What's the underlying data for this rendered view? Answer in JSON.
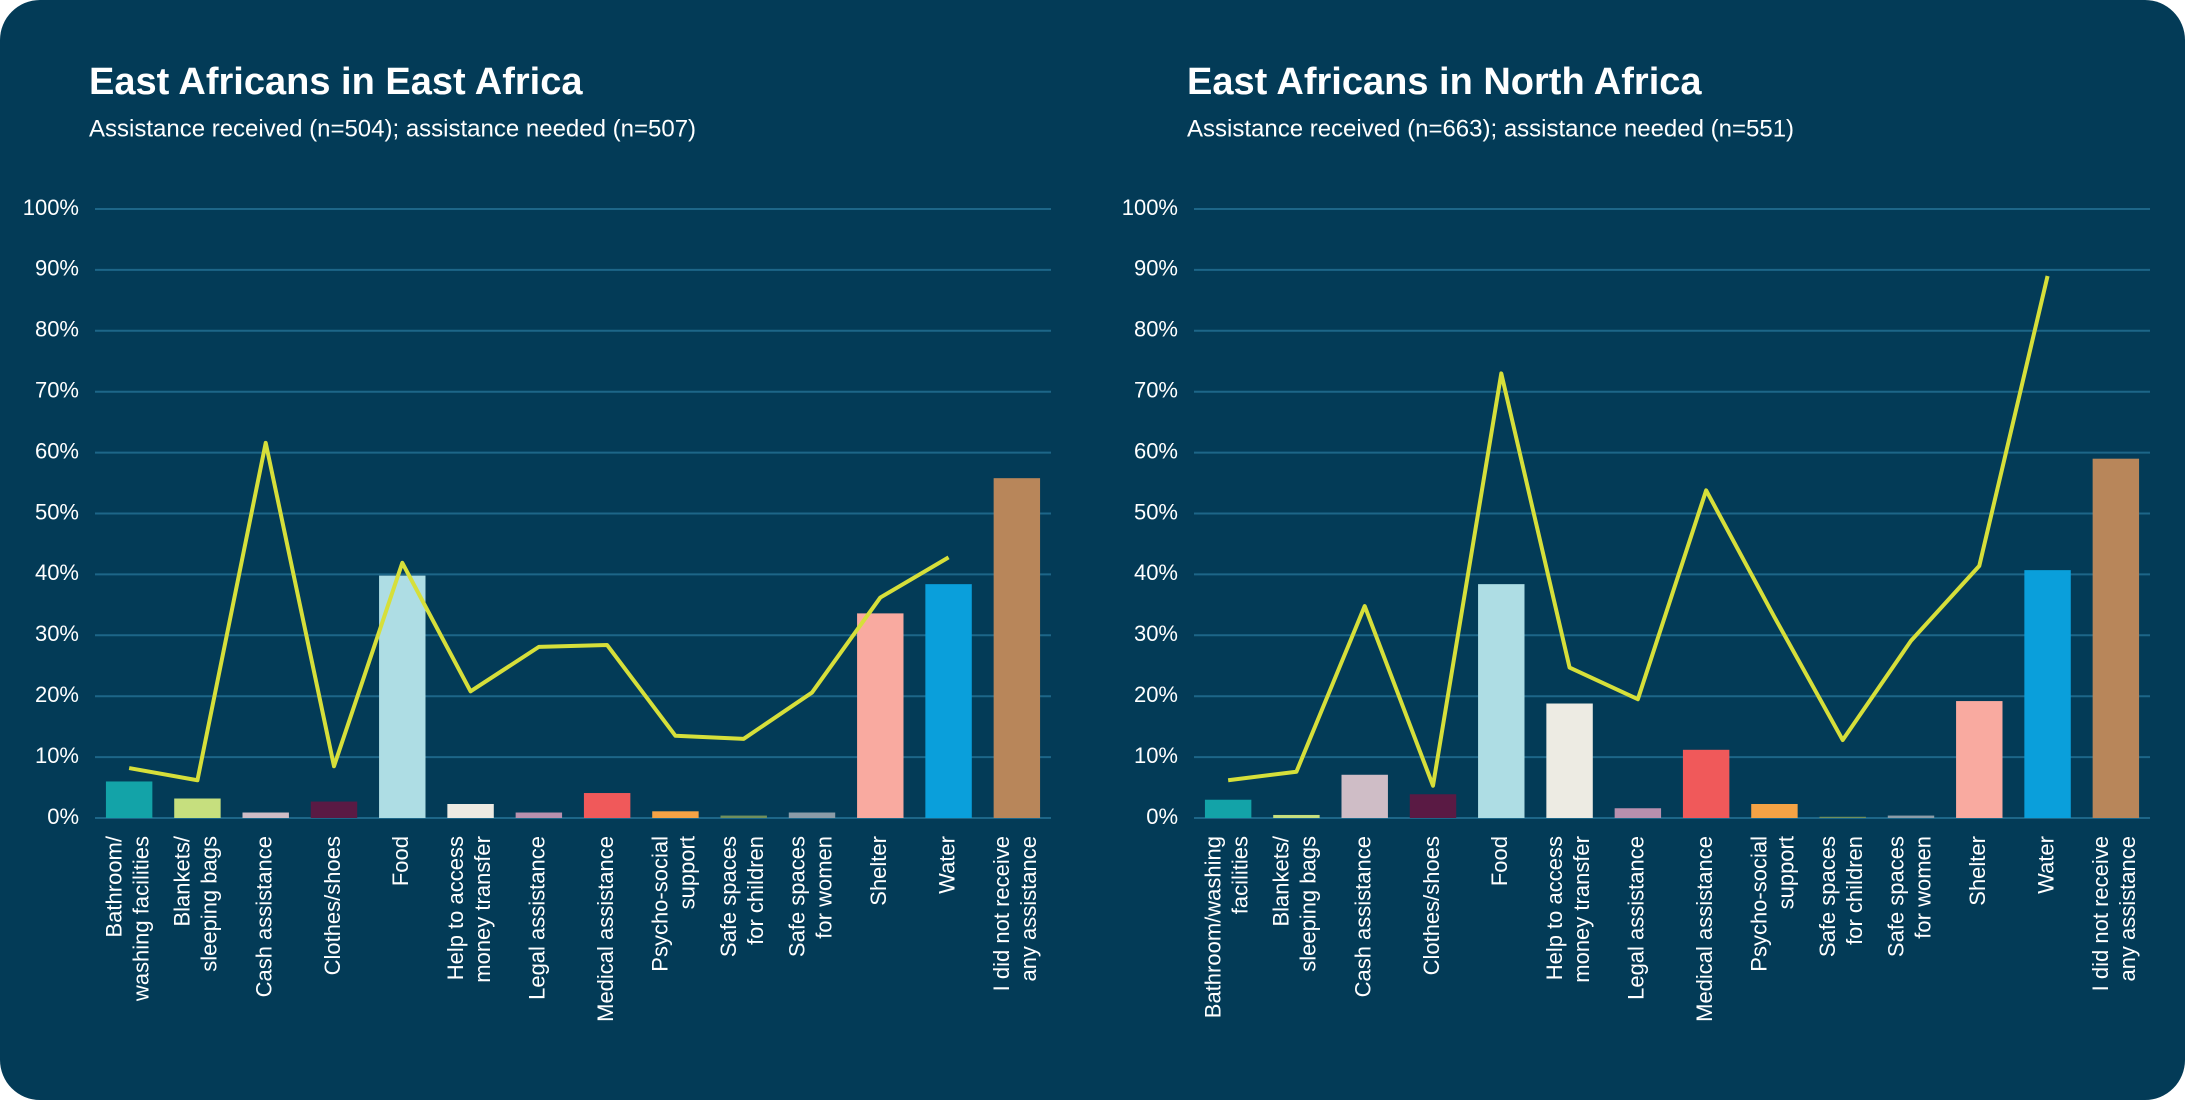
{
  "chart_data": [
    {
      "type": "bar",
      "title": "East Africans in East Africa",
      "subtitle": "Assistance received (n=504); assistance needed (n=507)",
      "categories": [
        [
          "Bathroom/",
          "washing facilities"
        ],
        [
          "Blankets/",
          "sleeping bags"
        ],
        [
          "Cash assistance"
        ],
        [
          "Clothes/shoes"
        ],
        [
          "Food"
        ],
        [
          "Help to access",
          "money transfer"
        ],
        [
          "Legal assistance"
        ],
        [
          "Medical assistance"
        ],
        [
          "Psycho-social",
          "support"
        ],
        [
          "Safe spaces",
          "for children"
        ],
        [
          "Safe spaces",
          "for women"
        ],
        [
          "Shelter"
        ],
        [
          "Water"
        ],
        [
          "I did not receive",
          "any assistance"
        ]
      ],
      "values": [
        6,
        3.2,
        0.9,
        2.7,
        39.8,
        2.3,
        0.9,
        4.1,
        1.1,
        0.4,
        0.9,
        33.6,
        38.4,
        55.8
      ],
      "colors": [
        "#13a3a8",
        "#c6df7e",
        "#cfbdc6",
        "#5a1a44",
        "#aedde4",
        "#edebe3",
        "#b890ae",
        "#f0595a",
        "#f5a345",
        "#6f8f5c",
        "#8b9ca8",
        "#f9aaa0",
        "#0a9fdb",
        "#b8865a"
      ],
      "line": {
        "color": "#d6df3a",
        "values": [
          8.2,
          6.2,
          61.6,
          8.5,
          41.9,
          20.8,
          28.1,
          28.4,
          13.5,
          13,
          20.6,
          36.2,
          42.8,
          null
        ]
      },
      "ylim": [
        0,
        100
      ],
      "yticks": [
        {
          "value": 0,
          "label": "0%"
        },
        {
          "value": 10,
          "label": "10%"
        },
        {
          "value": 20,
          "label": "20%"
        },
        {
          "value": 30,
          "label": "30%"
        },
        {
          "value": 40,
          "label": "40%"
        },
        {
          "value": 50,
          "label": "50%"
        },
        {
          "value": 60,
          "label": "60%"
        },
        {
          "value": 70,
          "label": "70%"
        },
        {
          "value": 80,
          "label": "80%"
        },
        {
          "value": 90,
          "label": "90%"
        },
        {
          "value": 100,
          "label": "100%"
        }
      ],
      "grid": true
    },
    {
      "type": "bar",
      "title": "East Africans in North Africa",
      "subtitle": "Assistance received (n=663); assistance needed (n=551)",
      "categories": [
        [
          "Bathroom/washing",
          "facilities"
        ],
        [
          "Blankets/",
          "sleeping bags"
        ],
        [
          "Cash assistance"
        ],
        [
          "Clothes/shoes"
        ],
        [
          "Food"
        ],
        [
          "Help to access",
          "money transfer"
        ],
        [
          "Legal assistance"
        ],
        [
          "Medical assistance"
        ],
        [
          "Psycho-social",
          "support"
        ],
        [
          "Safe spaces",
          "for children"
        ],
        [
          "Safe spaces",
          "for women"
        ],
        [
          "Shelter"
        ],
        [
          "Water"
        ],
        [
          "I did not receive",
          "any assistance"
        ]
      ],
      "values": [
        3,
        0.5,
        7.1,
        3.9,
        38.4,
        18.8,
        1.6,
        11.2,
        2.3,
        0.2,
        0.4,
        19.2,
        40.7,
        59
      ],
      "colors": [
        "#13a3a8",
        "#c6df7e",
        "#cfbdc6",
        "#5a1a44",
        "#aedde4",
        "#edebe3",
        "#b890ae",
        "#f0595a",
        "#f5a345",
        "#6f8f5c",
        "#8b9ca8",
        "#f9aaa0",
        "#0a9fdb",
        "#b8865a"
      ],
      "line": {
        "color": "#d6df3a",
        "values": [
          6.2,
          7.6,
          34.8,
          5.3,
          73,
          24.7,
          19.5,
          53.8,
          33,
          12.8,
          29.1,
          41.4,
          89,
          null
        ]
      },
      "ylim": [
        0,
        100
      ],
      "yticks": [
        {
          "value": 0,
          "label": "0%"
        },
        {
          "value": 10,
          "label": "10%"
        },
        {
          "value": 20,
          "label": "20%"
        },
        {
          "value": 30,
          "label": "30%"
        },
        {
          "value": 40,
          "label": "40%"
        },
        {
          "value": 50,
          "label": "50%"
        },
        {
          "value": 60,
          "label": "60%"
        },
        {
          "value": 70,
          "label": "70%"
        },
        {
          "value": 80,
          "label": "80%"
        },
        {
          "value": 90,
          "label": "90%"
        },
        {
          "value": 100,
          "label": "100%"
        }
      ],
      "grid": true
    }
  ]
}
